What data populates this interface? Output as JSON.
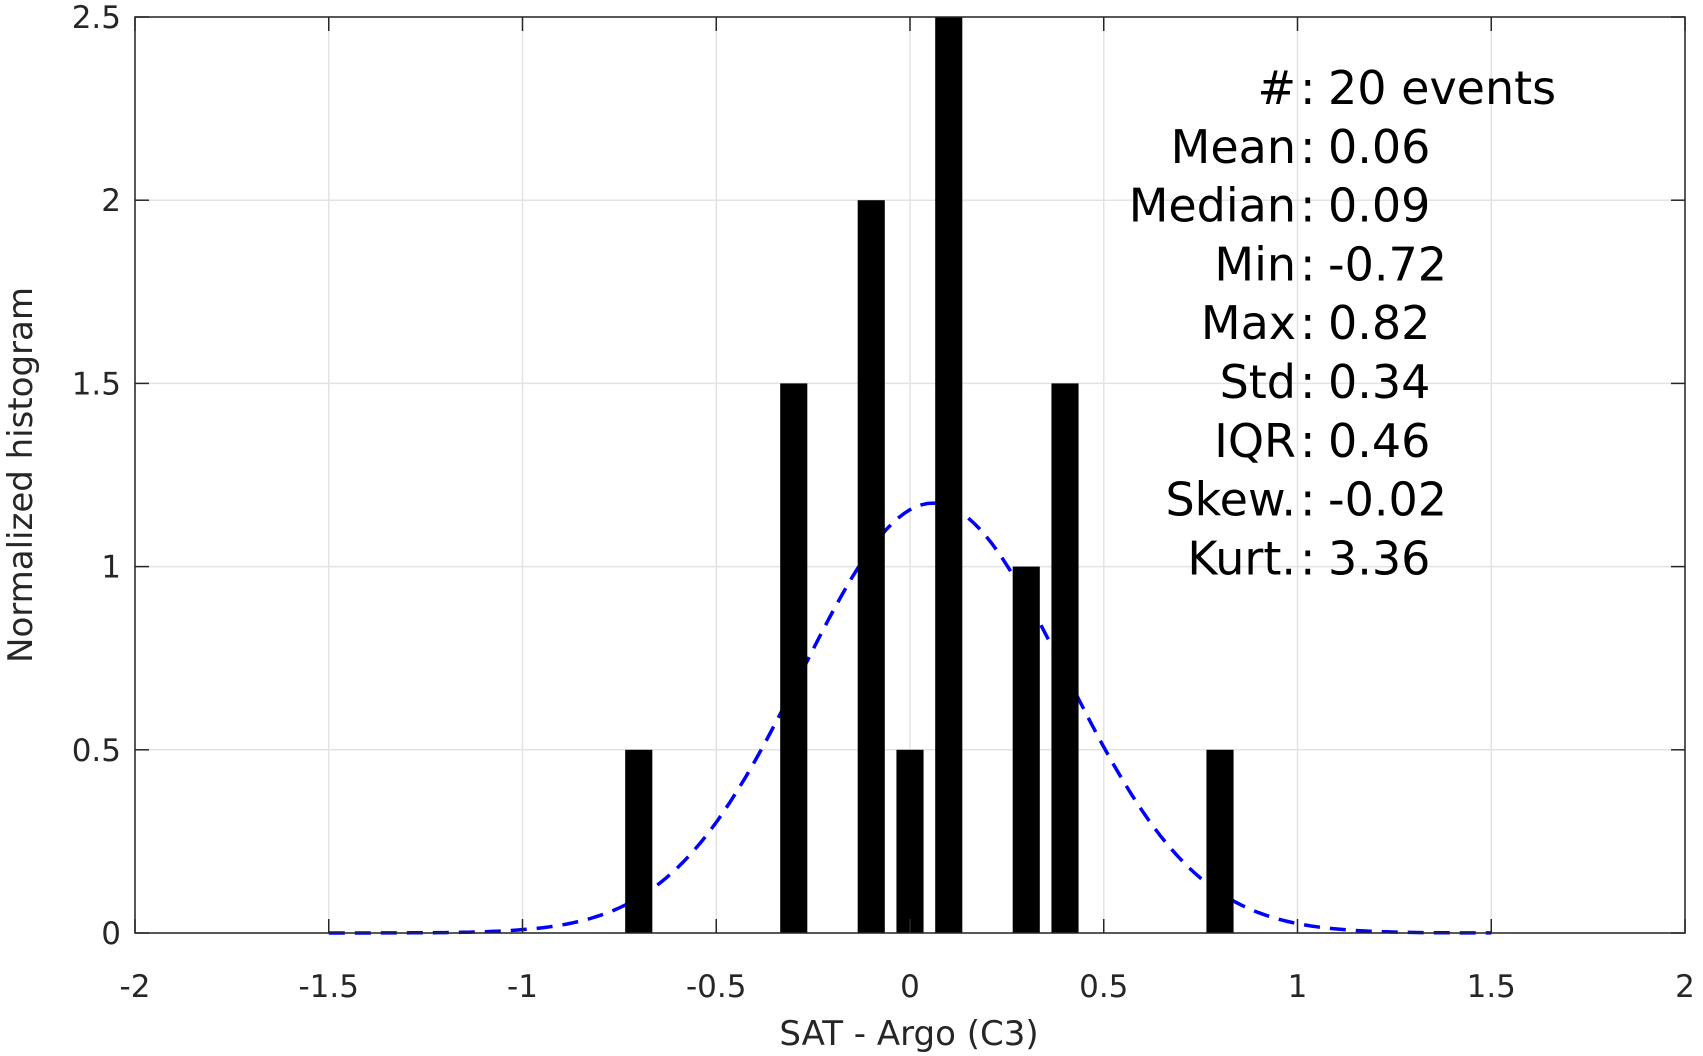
{
  "chart_data": {
    "type": "bar",
    "xlabel": "SAT - Argo (C3)",
    "ylabel": "Normalized histogram",
    "xlim": [
      -2,
      2
    ],
    "ylim": [
      0,
      2.5
    ],
    "grid": true,
    "xticks": [
      {
        "value": -2,
        "label": "-2"
      },
      {
        "value": -1.5,
        "label": "-1.5"
      },
      {
        "value": -1,
        "label": "-1"
      },
      {
        "value": -0.5,
        "label": "-0.5"
      },
      {
        "value": 0,
        "label": "0"
      },
      {
        "value": 0.5,
        "label": "0.5"
      },
      {
        "value": 1,
        "label": "1"
      },
      {
        "value": 1.5,
        "label": "1.5"
      },
      {
        "value": 2,
        "label": "2"
      }
    ],
    "yticks": [
      {
        "value": 0,
        "label": "0"
      },
      {
        "value": 0.5,
        "label": "0.5"
      },
      {
        "value": 1,
        "label": "1"
      },
      {
        "value": 1.5,
        "label": "1.5"
      },
      {
        "value": 2,
        "label": "2"
      },
      {
        "value": 2.5,
        "label": "2.5"
      }
    ],
    "bars": {
      "color": "#000000",
      "bin_width": 0.07,
      "x": [
        -0.7,
        -0.3,
        -0.1,
        0.0,
        0.1,
        0.3,
        0.4,
        0.8
      ],
      "values": [
        0.5,
        1.5,
        2.0,
        0.5,
        2.5,
        1.0,
        1.5,
        0.5
      ]
    },
    "fit_curve": {
      "type": "normal",
      "mean": 0.06,
      "std": 0.34,
      "x_range": [
        -1.5,
        1.5
      ],
      "color": "#0000ff",
      "style": "dashed"
    },
    "stats": [
      {
        "label": "#  ",
        "value": "20 events"
      },
      {
        "label": "Mean ",
        "value": "0.06"
      },
      {
        "label": "Median ",
        "value": "0.09"
      },
      {
        "label": "Min ",
        "value": "-0.72"
      },
      {
        "label": "Max ",
        "value": "0.82"
      },
      {
        "label": "Std ",
        "value": "0.34"
      },
      {
        "label": "IQR ",
        "value": "0.46"
      },
      {
        "label": "Skew. ",
        "value": "-0.02"
      },
      {
        "label": "Kurt. ",
        "value": "3.36"
      }
    ]
  }
}
